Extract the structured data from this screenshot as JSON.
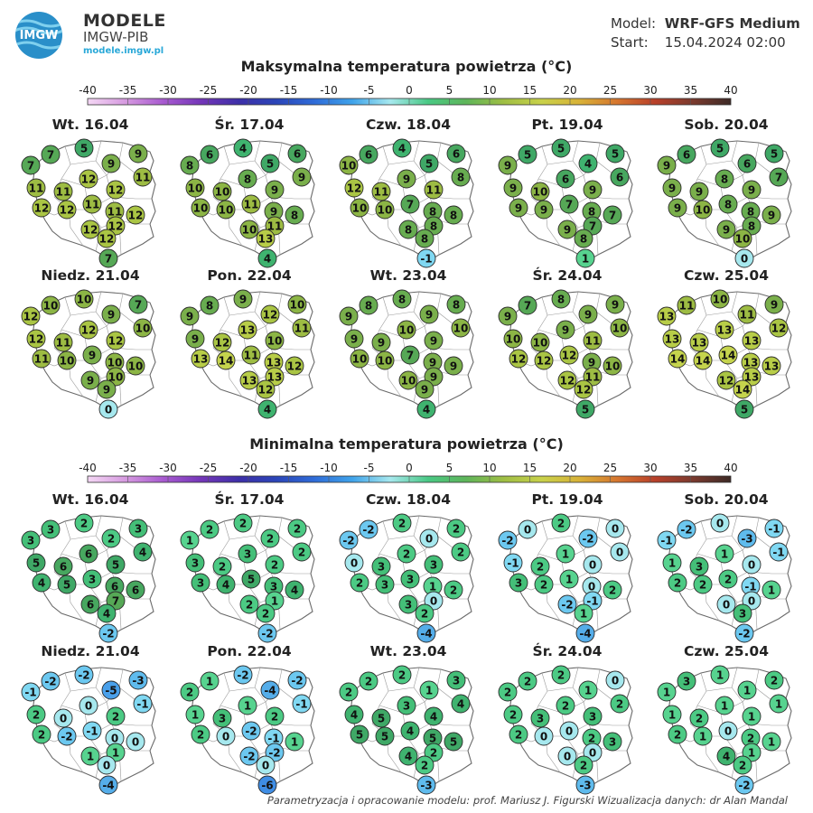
{
  "header": {
    "logo_text": "IMGW",
    "brand_title": "MODELE",
    "brand_subtitle": "IMGW-PIB",
    "brand_url": "modele.imgw.pl",
    "model_label": "Model:",
    "model_value": "WRF-GFS Medium",
    "start_label": "Start:",
    "start_value": "15.04.2024 02:00"
  },
  "colorbar": {
    "ticks": [
      "-40",
      "-35",
      "-30",
      "-25",
      "-20",
      "-15",
      "-10",
      "-5",
      "0",
      "5",
      "10",
      "15",
      "20",
      "25",
      "30",
      "35",
      "40"
    ]
  },
  "legend_colors": {
    "-40": "#f4d7f4",
    "-35": "#d69ae0",
    "-30": "#a85ad0",
    "-25": "#7436b8",
    "-20": "#3d2fa8",
    "-15": "#2b45b8",
    "-10": "#2f6cd8",
    "-6": "#3f8de4",
    "-5": "#4aa0ea",
    "-4": "#55ade9",
    "-3": "#5fbbed",
    "-2": "#6cc8f0",
    "-1": "#80d8f2",
    "0": "#a6e8ee",
    "1": "#57d38f",
    "2": "#4cca84",
    "3": "#44bf78",
    "4": "#3fb36f",
    "5": "#3fa866",
    "6": "#47a75f",
    "7": "#56a856",
    "8": "#67ac50",
    "9": "#7aaf4b",
    "10": "#8cb545",
    "11": "#9dbc43",
    "12": "#aac544",
    "13": "#b8cd48",
    "14": "#c5d44d",
    "15": "#c8d14a",
    "20": "#d8b238",
    "25": "#d6762f",
    "30": "#b8402a",
    "35": "#7a3a2e",
    "40": "#3d2a26"
  },
  "sections": [
    {
      "title": "Maksymalna temperatura powietrza (°C)",
      "days": [
        {
          "label": "Wt. 16.04",
          "values": [
            "7",
            "5",
            "9",
            "7",
            "9",
            "11",
            "11",
            "11",
            "12",
            "12",
            "11",
            "12",
            "12",
            "12",
            "11",
            "12",
            "12",
            "12",
            "7"
          ]
        },
        {
          "label": "Śr. 17.04",
          "values": [
            "6",
            "4",
            "6",
            "8",
            "5",
            "9",
            "10",
            "10",
            "8",
            "9",
            "9",
            "8",
            "10",
            "10",
            "11",
            "11",
            "10",
            "13",
            "4"
          ]
        },
        {
          "label": "Czw. 18.04",
          "values": [
            "6",
            "4",
            "6",
            "10",
            "5",
            "8",
            "12",
            "11",
            "9",
            "11",
            "8",
            "8",
            "10",
            "10",
            "7",
            "8",
            "8",
            "8",
            "-1"
          ]
        },
        {
          "label": "Pt. 19.04",
          "values": [
            "5",
            "5",
            "5",
            "9",
            "4",
            "6",
            "9",
            "10",
            "6",
            "9",
            "8",
            "7",
            "9",
            "9",
            "7",
            "7",
            "9",
            "8",
            "1"
          ]
        },
        {
          "label": "Sob. 20.04",
          "values": [
            "6",
            "5",
            "5",
            "9",
            "6",
            "7",
            "9",
            "9",
            "8",
            "9",
            "8",
            "9",
            "9",
            "10",
            "8",
            "8",
            "9",
            "10",
            "0"
          ]
        },
        {
          "label": "Niedz. 21.04",
          "values": [
            "10",
            "10",
            "7",
            "12",
            "9",
            "10",
            "12",
            "11",
            "12",
            "12",
            "10",
            "10",
            "11",
            "10",
            "9",
            "10",
            "9",
            "9",
            "0"
          ]
        },
        {
          "label": "Pon. 22.04",
          "values": [
            "8",
            "9",
            "10",
            "9",
            "12",
            "11",
            "9",
            "12",
            "13",
            "10",
            "13",
            "12",
            "13",
            "14",
            "11",
            "13",
            "13",
            "12",
            "4"
          ]
        },
        {
          "label": "Wt. 23.04",
          "values": [
            "8",
            "8",
            "8",
            "9",
            "9",
            "10",
            "9",
            "9",
            "10",
            "9",
            "9",
            "9",
            "10",
            "10",
            "7",
            "9",
            "10",
            "9",
            "4"
          ]
        },
        {
          "label": "Śr. 24.04",
          "values": [
            "7",
            "8",
            "9",
            "9",
            "9",
            "10",
            "10",
            "10",
            "9",
            "11",
            "9",
            "10",
            "12",
            "12",
            "12",
            "11",
            "12",
            "12",
            "5"
          ]
        },
        {
          "label": "Czw. 25.04",
          "values": [
            "11",
            "10",
            "9",
            "13",
            "11",
            "12",
            "13",
            "13",
            "13",
            "13",
            "13",
            "13",
            "14",
            "14",
            "14",
            "13",
            "12",
            "14",
            "5"
          ]
        }
      ]
    },
    {
      "title": "Minimalna temperatura powietrza (°C)",
      "days": [
        {
          "label": "Wt. 16.04",
          "values": [
            "3",
            "2",
            "3",
            "3",
            "2",
            "4",
            "5",
            "6",
            "6",
            "5",
            "6",
            "6",
            "4",
            "5",
            "3",
            "7",
            "6",
            "4",
            "-2"
          ]
        },
        {
          "label": "Śr. 17.04",
          "values": [
            "2",
            "2",
            "2",
            "1",
            "2",
            "2",
            "3",
            "2",
            "3",
            "2",
            "3",
            "4",
            "3",
            "4",
            "5",
            "1",
            "2",
            "2",
            "-2"
          ]
        },
        {
          "label": "Czw. 18.04",
          "values": [
            "-2",
            "2",
            "2",
            "-2",
            "0",
            "2",
            "0",
            "3",
            "2",
            "3",
            "1",
            "2",
            "2",
            "3",
            "3",
            "0",
            "3",
            "2",
            "-4"
          ]
        },
        {
          "label": "Pt. 19.04",
          "values": [
            "0",
            "2",
            "0",
            "-2",
            "-2",
            "0",
            "-1",
            "2",
            "1",
            "0",
            "0",
            "2",
            "3",
            "2",
            "1",
            "-1",
            "-2",
            "1",
            "-4"
          ]
        },
        {
          "label": "Sob. 20.04",
          "values": [
            "-2",
            "0",
            "-1",
            "-1",
            "-3",
            "-1",
            "1",
            "3",
            "1",
            "0",
            "-1",
            "1",
            "2",
            "2",
            "2",
            "0",
            "0",
            "3",
            "-2"
          ]
        },
        {
          "label": "Niedz. 21.04",
          "values": [
            "-2",
            "-2",
            "-3",
            "-1",
            "-5",
            "-1",
            "2",
            "0",
            "0",
            "2",
            "0",
            "0",
            "2",
            "-2",
            "-1",
            "1",
            "1",
            "0",
            "-4"
          ]
        },
        {
          "label": "Pon. 22.04",
          "values": [
            "1",
            "-2",
            "-2",
            "2",
            "-4",
            "-1",
            "1",
            "3",
            "1",
            "2",
            "-1",
            "1",
            "2",
            "0",
            "-2",
            "-2",
            "-2",
            "0",
            "-6"
          ]
        },
        {
          "label": "Wt. 23.04",
          "values": [
            "2",
            "2",
            "3",
            "2",
            "1",
            "4",
            "4",
            "5",
            "3",
            "4",
            "5",
            "5",
            "5",
            "5",
            "4",
            "2",
            "4",
            "2",
            "-3"
          ]
        },
        {
          "label": "Śr. 24.04",
          "values": [
            "2",
            "2",
            "0",
            "2",
            "1",
            "2",
            "2",
            "3",
            "2",
            "3",
            "2",
            "3",
            "2",
            "0",
            "0",
            "0",
            "0",
            "2",
            "-3"
          ]
        },
        {
          "label": "Czw. 25.04",
          "values": [
            "3",
            "1",
            "2",
            "1",
            "1",
            "1",
            "1",
            "2",
            "1",
            "1",
            "2",
            "1",
            "2",
            "1",
            "0",
            "1",
            "4",
            "2",
            "-2"
          ]
        }
      ]
    }
  ],
  "credits": "Parametryzacja i opracowanie modelu: prof. Mariusz J. Figurski    Wizualizacja danych: dr Alan Mandal"
}
